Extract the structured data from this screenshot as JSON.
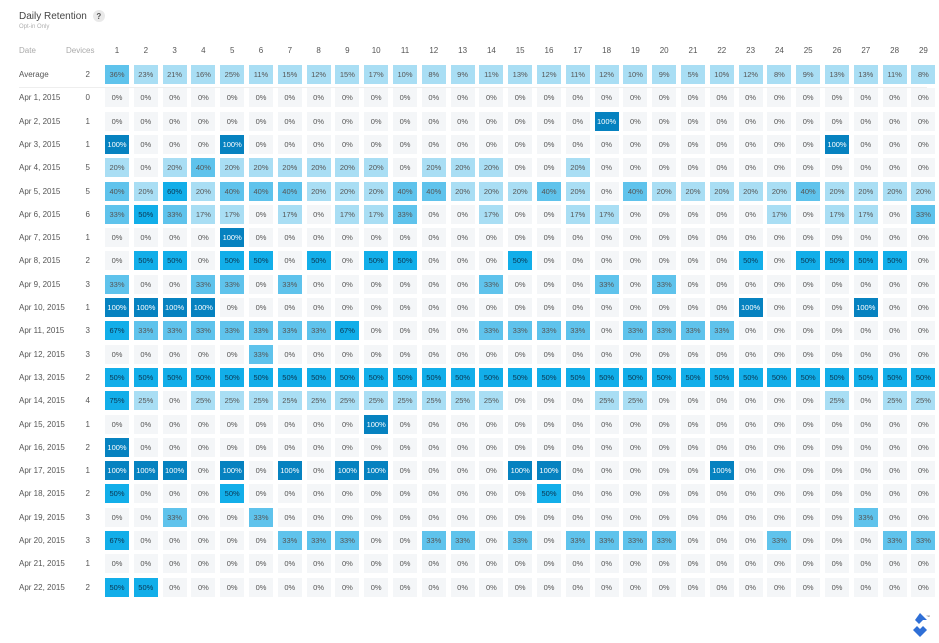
{
  "header": {
    "title": "Daily Retention",
    "help_icon": "?",
    "subtitle": "Opt-in Only"
  },
  "logo_icon": "toptal-logo-icon",
  "colors": {
    "light": "#a9def4",
    "medium": "#5fc3ec",
    "bright": "#12aee9",
    "dark": "#0682c0",
    "empty": "#f4f6f8"
  },
  "chart_data": {
    "type": "heatmap",
    "title": "Daily Retention",
    "subtitle": "Opt-in Only",
    "row_header": "Date",
    "devices_header": "Devices",
    "columns": [
      "1",
      "2",
      "3",
      "4",
      "5",
      "6",
      "7",
      "8",
      "9",
      "10",
      "11",
      "12",
      "13",
      "14",
      "15",
      "16",
      "17",
      "18",
      "19",
      "20",
      "21",
      "22",
      "23",
      "24",
      "25",
      "26",
      "27",
      "28",
      "29"
    ],
    "rows": [
      {
        "label": "Average",
        "devices": 2,
        "values": [
          36,
          23,
          21,
          16,
          25,
          11,
          15,
          12,
          15,
          17,
          10,
          8,
          9,
          11,
          13,
          12,
          11,
          12,
          10,
          9,
          5,
          10,
          12,
          8,
          9,
          13,
          13,
          11,
          8
        ]
      },
      {
        "label": "Apr 1, 2015",
        "devices": 0,
        "values": [
          0,
          0,
          0,
          0,
          0,
          0,
          0,
          0,
          0,
          0,
          0,
          0,
          0,
          0,
          0,
          0,
          0,
          0,
          0,
          0,
          0,
          0,
          0,
          0,
          0,
          0,
          0,
          0,
          0
        ]
      },
      {
        "label": "Apr 2, 2015",
        "devices": 1,
        "values": [
          0,
          0,
          0,
          0,
          0,
          0,
          0,
          0,
          0,
          0,
          0,
          0,
          0,
          0,
          0,
          0,
          0,
          100,
          0,
          0,
          0,
          0,
          0,
          0,
          0,
          0,
          0,
          0,
          0
        ]
      },
      {
        "label": "Apr 3, 2015",
        "devices": 1,
        "values": [
          100,
          0,
          0,
          0,
          100,
          0,
          0,
          0,
          0,
          0,
          0,
          0,
          0,
          0,
          0,
          0,
          0,
          0,
          0,
          0,
          0,
          0,
          0,
          0,
          0,
          100,
          0,
          0,
          0
        ]
      },
      {
        "label": "Apr 4, 2015",
        "devices": 5,
        "values": [
          20,
          0,
          20,
          40,
          20,
          20,
          20,
          20,
          20,
          20,
          0,
          20,
          20,
          20,
          0,
          0,
          20,
          0,
          0,
          0,
          0,
          0,
          0,
          0,
          0,
          0,
          0,
          0,
          0
        ]
      },
      {
        "label": "Apr 5, 2015",
        "devices": 5,
        "values": [
          40,
          20,
          60,
          20,
          40,
          40,
          40,
          20,
          20,
          20,
          40,
          40,
          20,
          20,
          20,
          40,
          20,
          0,
          40,
          20,
          20,
          20,
          20,
          20,
          40,
          20,
          20,
          20,
          20
        ]
      },
      {
        "label": "Apr 6, 2015",
        "devices": 6,
        "values": [
          33,
          50,
          33,
          17,
          17,
          0,
          17,
          0,
          17,
          17,
          33,
          0,
          0,
          17,
          0,
          0,
          17,
          17,
          0,
          0,
          0,
          0,
          0,
          17,
          0,
          17,
          17,
          0,
          33
        ]
      },
      {
        "label": "Apr 7, 2015",
        "devices": 1,
        "values": [
          0,
          0,
          0,
          0,
          100,
          0,
          0,
          0,
          0,
          0,
          0,
          0,
          0,
          0,
          0,
          0,
          0,
          0,
          0,
          0,
          0,
          0,
          0,
          0,
          0,
          0,
          0,
          0,
          0
        ]
      },
      {
        "label": "Apr 8, 2015",
        "devices": 2,
        "values": [
          0,
          50,
          50,
          0,
          50,
          50,
          0,
          50,
          0,
          50,
          50,
          0,
          0,
          0,
          50,
          0,
          0,
          0,
          0,
          0,
          0,
          0,
          50,
          0,
          50,
          50,
          50,
          50,
          0
        ]
      },
      {
        "label": "Apr 9, 2015",
        "devices": 3,
        "values": [
          33,
          0,
          0,
          33,
          33,
          0,
          33,
          0,
          0,
          0,
          0,
          0,
          0,
          33,
          0,
          0,
          0,
          33,
          0,
          33,
          0,
          0,
          0,
          0,
          0,
          0,
          0,
          0,
          0
        ]
      },
      {
        "label": "Apr 10, 2015",
        "devices": 1,
        "values": [
          100,
          100,
          100,
          100,
          0,
          0,
          0,
          0,
          0,
          0,
          0,
          0,
          0,
          0,
          0,
          0,
          0,
          0,
          0,
          0,
          0,
          0,
          100,
          0,
          0,
          0,
          100,
          0,
          0
        ]
      },
      {
        "label": "Apr 11, 2015",
        "devices": 3,
        "values": [
          67,
          33,
          33,
          33,
          33,
          33,
          33,
          33,
          67,
          0,
          0,
          0,
          0,
          33,
          33,
          33,
          33,
          0,
          33,
          33,
          33,
          33,
          0,
          0,
          0,
          0,
          0,
          0,
          0
        ]
      },
      {
        "label": "Apr 12, 2015",
        "devices": 3,
        "values": [
          0,
          0,
          0,
          0,
          0,
          33,
          0,
          0,
          0,
          0,
          0,
          0,
          0,
          0,
          0,
          0,
          0,
          0,
          0,
          0,
          0,
          0,
          0,
          0,
          0,
          0,
          0,
          0,
          0
        ]
      },
      {
        "label": "Apr 13, 2015",
        "devices": 2,
        "values": [
          50,
          50,
          50,
          50,
          50,
          50,
          50,
          50,
          50,
          50,
          50,
          50,
          50,
          50,
          50,
          50,
          50,
          50,
          50,
          50,
          50,
          50,
          50,
          50,
          50,
          50,
          50,
          50,
          50
        ]
      },
      {
        "label": "Apr 14, 2015",
        "devices": 4,
        "values": [
          75,
          25,
          0,
          25,
          25,
          25,
          25,
          25,
          25,
          25,
          25,
          25,
          25,
          25,
          0,
          0,
          0,
          25,
          25,
          0,
          0,
          0,
          0,
          0,
          0,
          25,
          0,
          25,
          25
        ]
      },
      {
        "label": "Apr 15, 2015",
        "devices": 1,
        "values": [
          0,
          0,
          0,
          0,
          0,
          0,
          0,
          0,
          0,
          100,
          0,
          0,
          0,
          0,
          0,
          0,
          0,
          0,
          0,
          0,
          0,
          0,
          0,
          0,
          0,
          0,
          0,
          0,
          0
        ]
      },
      {
        "label": "Apr 16, 2015",
        "devices": 2,
        "values": [
          100,
          0,
          0,
          0,
          0,
          0,
          0,
          0,
          0,
          0,
          0,
          0,
          0,
          0,
          0,
          0,
          0,
          0,
          0,
          0,
          0,
          0,
          0,
          0,
          0,
          0,
          0,
          0,
          0
        ]
      },
      {
        "label": "Apr 17, 2015",
        "devices": 1,
        "values": [
          100,
          100,
          100,
          0,
          100,
          0,
          100,
          0,
          100,
          100,
          0,
          0,
          0,
          0,
          100,
          100,
          0,
          0,
          0,
          0,
          0,
          100,
          0,
          0,
          0,
          0,
          0,
          0,
          0
        ]
      },
      {
        "label": "Apr 18, 2015",
        "devices": 2,
        "values": [
          50,
          0,
          0,
          0,
          50,
          0,
          0,
          0,
          0,
          0,
          0,
          0,
          0,
          0,
          0,
          50,
          0,
          0,
          0,
          0,
          0,
          0,
          0,
          0,
          0,
          0,
          0,
          0,
          0
        ]
      },
      {
        "label": "Apr 19, 2015",
        "devices": 3,
        "values": [
          0,
          0,
          33,
          0,
          0,
          33,
          0,
          0,
          0,
          0,
          0,
          0,
          0,
          0,
          0,
          0,
          0,
          0,
          0,
          0,
          0,
          0,
          0,
          0,
          0,
          0,
          33,
          0,
          0
        ]
      },
      {
        "label": "Apr 20, 2015",
        "devices": 3,
        "values": [
          67,
          0,
          0,
          0,
          0,
          0,
          33,
          33,
          33,
          0,
          0,
          33,
          33,
          0,
          33,
          0,
          33,
          33,
          33,
          33,
          0,
          0,
          0,
          33,
          0,
          0,
          0,
          33,
          33
        ]
      },
      {
        "label": "Apr 21, 2015",
        "devices": 1,
        "values": [
          0,
          0,
          0,
          0,
          0,
          0,
          0,
          0,
          0,
          0,
          0,
          0,
          0,
          0,
          0,
          0,
          0,
          0,
          0,
          0,
          0,
          0,
          0,
          0,
          0,
          0,
          0,
          0,
          0
        ]
      },
      {
        "label": "Apr 22, 2015",
        "devices": 2,
        "values": [
          50,
          50,
          0,
          0,
          0,
          0,
          0,
          0,
          0,
          0,
          0,
          0,
          0,
          0,
          0,
          0,
          0,
          0,
          0,
          0,
          0,
          0,
          0,
          0,
          0,
          0,
          0,
          0,
          0
        ]
      }
    ],
    "value_suffix": "%"
  }
}
